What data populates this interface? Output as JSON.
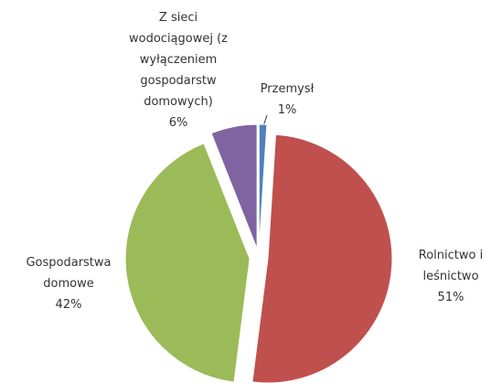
{
  "chart_data": {
    "type": "pie",
    "categories": [
      "Przemysł",
      "Rolnictwo i leśnictwo",
      "Gospodarstwa domowe",
      "Z sieci wodociągowej (z wyłączeniem gospodarstw domowych)"
    ],
    "values": [
      1,
      51,
      42,
      6
    ],
    "value_labels": [
      "1%",
      "51%",
      "42%",
      "6%"
    ],
    "colors": [
      "#4f81bd",
      "#c0504d",
      "#9bbb59",
      "#8064a2"
    ]
  }
}
